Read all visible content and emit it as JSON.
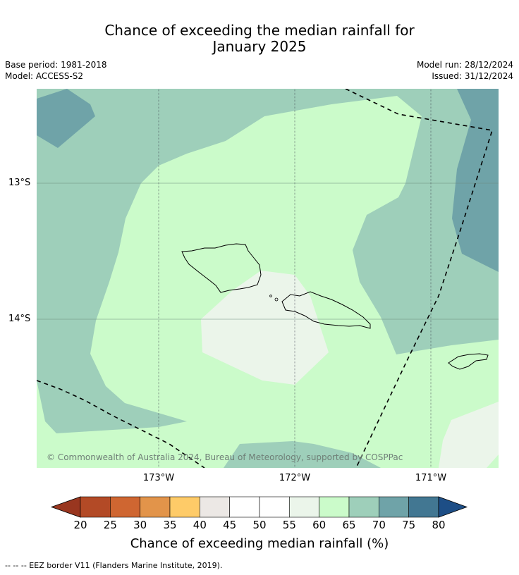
{
  "title_line1": "Chance of exceeding the median rainfall for",
  "title_line2": "January 2025",
  "base_period": "Base period: 1981-2018",
  "model": "Model: ACCESS-S2",
  "model_run": "Model run: 28/12/2024",
  "issued": "Issued: 31/12/2024",
  "latitudes": [
    "13°S",
    "14°S"
  ],
  "longitudes": [
    "173°W",
    "172°W",
    "171°W"
  ],
  "copyright": "© Commonwealth of Australia 2024, Bureau of Meteorology, supported by COSPPac",
  "colorbar": {
    "title": "Chance of exceeding median rainfall (%)",
    "ticks": [
      "20",
      "25",
      "30",
      "35",
      "40",
      "45",
      "50",
      "55",
      "60",
      "65",
      "70",
      "75",
      "80"
    ],
    "colors": [
      "#b34a26",
      "#cf6631",
      "#e2944a",
      "#fecb68",
      "#ece8e5",
      "#ffffff",
      "#ffffff",
      "#ebf5ea",
      "#cbfbca",
      "#9ecfba",
      "#6fa3a8",
      "#427792"
    ],
    "under_color": "#99361f",
    "over_color": "#1d4e86"
  },
  "footer": "--  --  -- EEZ border V11 (Flanders Marine Institute, 2019)."
}
